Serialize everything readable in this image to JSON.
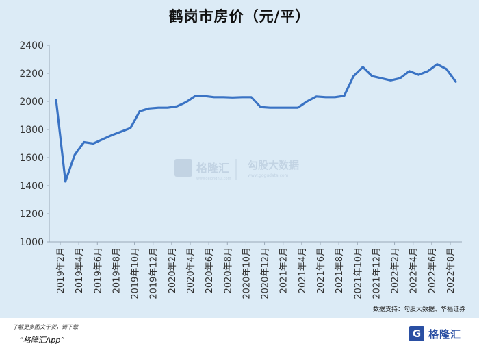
{
  "chart_data": {
    "type": "line",
    "title": "鹤岗市房价（元/平）",
    "ylim": [
      1000,
      2400
    ],
    "yticks": [
      1000,
      1200,
      1400,
      1600,
      1800,
      2000,
      2200,
      2400
    ],
    "xlabels": [
      "2019年2月",
      "2019年4月",
      "2019年6月",
      "2019年8月",
      "2019年10月",
      "2019年12月",
      "2020年2月",
      "2020年4月",
      "2020年6月",
      "2020年8月",
      "2020年10月",
      "2020年12月",
      "2021年2月",
      "2021年4月",
      "2021年6月",
      "2021年8月",
      "2021年10月",
      "2021年12月",
      "2022年2月",
      "2022年4月",
      "2022年6月",
      "2022年8月"
    ],
    "series": [
      {
        "color": "#3a73c4",
        "values": [
          2010,
          1430,
          1620,
          1710,
          1700,
          1730,
          1760,
          1785,
          1810,
          1930,
          1950,
          1955,
          1955,
          1965,
          1995,
          2040,
          2038,
          2030,
          2030,
          2028,
          2030,
          2030,
          1960,
          1955,
          1955,
          1955,
          1955,
          2000,
          2035,
          2030,
          2030,
          2040,
          2180,
          2245,
          2180,
          2165,
          2150,
          2165,
          2215,
          2190,
          2215,
          2265,
          2230,
          2140
        ]
      }
    ]
  },
  "watermark": {
    "brand": "格隆汇",
    "brand_sub": "www.gelonghui.com",
    "partner": "勾股大数据",
    "partner_sub": "www.gogudata.com"
  },
  "source_note": "数据支持：勾股大数据、华福证券",
  "footer": {
    "line1": "了解更多图文干货，请下载",
    "line2": "“格隆汇App”",
    "logo_letter": "G",
    "logo_text": "格隆汇"
  },
  "colors": {
    "background": "#dcebf6",
    "line": "#3a73c4",
    "brand": "#2a4fa3"
  }
}
